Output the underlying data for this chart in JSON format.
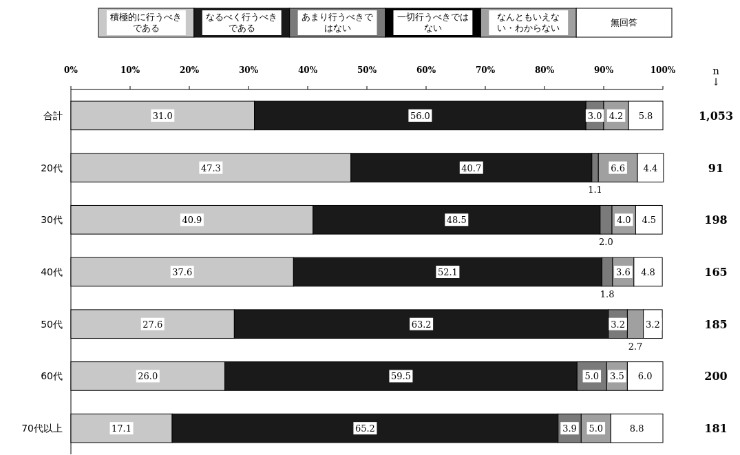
{
  "chart_data": {
    "type": "bar",
    "orientation": "horizontal",
    "stacked": true,
    "categories": [
      "合計",
      "20代",
      "30代",
      "40代",
      "50代",
      "60代",
      "70代以上"
    ],
    "series": [
      {
        "name": "積極的に行うべきである",
        "color": "#c8c8c8",
        "values": [
          31.0,
          47.3,
          40.9,
          37.6,
          27.6,
          26.0,
          17.1
        ],
        "value_labels": [
          "31.0",
          "47.3",
          "40.9",
          "37.6",
          "27.6",
          "26.0",
          "17.1"
        ]
      },
      {
        "name": "なるべく行うべきである",
        "color": "#1a1a1a",
        "values": [
          56.0,
          40.7,
          48.5,
          52.1,
          63.2,
          59.5,
          65.2
        ],
        "value_labels": [
          "56.0",
          "40.7",
          "48.5",
          "52.1",
          "63.2",
          "59.5",
          "65.2"
        ]
      },
      {
        "name": "あまり行うべきではない",
        "color": "#7a7a7a",
        "values": [
          3.0,
          1.1,
          2.0,
          1.8,
          3.2,
          5.0,
          3.9
        ],
        "value_labels": [
          "3.0",
          "1.1",
          "2.0",
          "1.8",
          "3.2",
          "5.0",
          "3.9"
        ]
      },
      {
        "name": "一切行うべきではない",
        "color": "#000000",
        "values": [
          0,
          0,
          0,
          0,
          0,
          0,
          0
        ],
        "value_labels": [
          null,
          null,
          null,
          null,
          null,
          null,
          null
        ]
      },
      {
        "name": "なんともいえない・わからない",
        "color": "#a0a0a0",
        "values": [
          4.2,
          6.6,
          4.0,
          3.6,
          2.7,
          3.5,
          5.0
        ],
        "value_labels": [
          "4.2",
          "6.6",
          "4.0",
          "3.6",
          "2.7",
          "3.5",
          "5.0"
        ]
      },
      {
        "name": "無回答",
        "color": "#ffffff",
        "values": [
          5.8,
          4.4,
          4.5,
          4.8,
          3.2,
          6.0,
          8.8
        ],
        "value_labels": [
          "5.8",
          "4.4",
          "4.5",
          "4.8",
          "3.2",
          "6.0",
          "8.8"
        ]
      }
    ],
    "xlim": [
      0,
      100
    ],
    "xticks": [
      {
        "value": 0,
        "label": "0%"
      },
      {
        "value": 10,
        "label": "10%"
      },
      {
        "value": 20,
        "label": "20%"
      },
      {
        "value": 30,
        "label": "30%"
      },
      {
        "value": 40,
        "label": "40%"
      },
      {
        "value": 50,
        "label": "50%"
      },
      {
        "value": 60,
        "label": "60%"
      },
      {
        "value": 70,
        "label": "70%"
      },
      {
        "value": 80,
        "label": "80%"
      },
      {
        "value": 90,
        "label": "90%"
      },
      {
        "value": 100,
        "label": "100%"
      }
    ],
    "legend": "top",
    "grid": false,
    "annotations": [
      "n",
      "↓",
      "1,053",
      "91",
      "198",
      "165",
      "185",
      "200",
      "181"
    ]
  }
}
